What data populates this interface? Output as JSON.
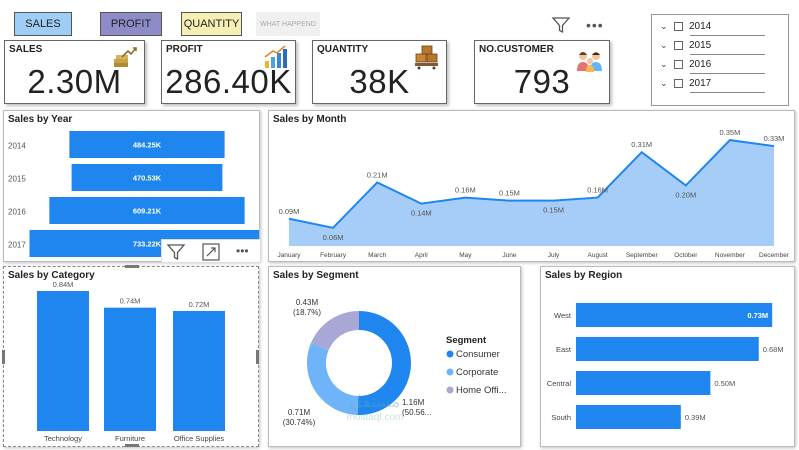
{
  "nav": {
    "sales": "SALES",
    "profit": "PROFIT",
    "quantity": "QUANTITY",
    "what_happend": "WHAT HAPPEND"
  },
  "kpis": [
    {
      "label": "SALES",
      "value": "2.30M",
      "icon": "money-growth-icon"
    },
    {
      "label": "PROFIT",
      "value": "286.40K",
      "icon": "bar-growth-icon"
    },
    {
      "label": "QUANTITY",
      "value": "38K",
      "icon": "boxes-icon"
    },
    {
      "label": "NO.CUSTOMER",
      "value": "793",
      "icon": "customers-icon"
    }
  ],
  "slicer": {
    "years": [
      "2014",
      "2015",
      "2016",
      "2017"
    ]
  },
  "colors": {
    "bar": "#1f86ef",
    "area": "#a6cdf7",
    "line": "#1f86ef",
    "donut_consumer": "#1f86ef",
    "donut_corporate": "#6fb4f8",
    "donut_home": "#a8a8d6",
    "nav_sales": "#9ecdf6",
    "nav_profit": "#8e8cc8",
    "nav_quantity": "#f6efb4"
  },
  "chart_data": [
    {
      "type": "bar",
      "orientation": "horizontal",
      "title": "Sales by Year",
      "categories": [
        "2014",
        "2015",
        "2016",
        "2017"
      ],
      "values": [
        484.25,
        470.53,
        609.21,
        733.22
      ],
      "data_labels": [
        "484.25K",
        "470.53K",
        "609.21K",
        "733.22K"
      ]
    },
    {
      "type": "area",
      "title": "Sales by Month",
      "categories": [
        "January",
        "February",
        "March",
        "April",
        "May",
        "June",
        "July",
        "August",
        "September",
        "October",
        "November",
        "December"
      ],
      "values": [
        0.09,
        0.06,
        0.21,
        0.14,
        0.16,
        0.15,
        0.15,
        0.16,
        0.31,
        0.2,
        0.35,
        0.33
      ],
      "data_labels": [
        "0.09M",
        "0.06M",
        "0.21M",
        "0.14M",
        "0.16M",
        "0.15M",
        "0.15M",
        "0.16M",
        "0.31M",
        "0.20M",
        "0.35M",
        "0.33M"
      ],
      "ylim": [
        0,
        0.38
      ]
    },
    {
      "type": "bar",
      "title": "Sales by Category",
      "categories": [
        "Technology",
        "Furniture",
        "Office Supplies"
      ],
      "values": [
        0.84,
        0.74,
        0.72
      ],
      "data_labels": [
        "0.84M",
        "0.74M",
        "0.72M"
      ],
      "ylim": [
        0,
        0.9
      ]
    },
    {
      "type": "pie",
      "title": "Sales by Segment",
      "legend_title": "Segment",
      "categories": [
        "Consumer",
        "Corporate",
        "Home Offi..."
      ],
      "values": [
        1.16,
        0.71,
        0.43
      ],
      "percents": [
        "(50.56...",
        "(30.74%)",
        "(18.7%)"
      ],
      "data_labels": [
        "1.16M",
        "0.71M",
        "0.43M"
      ]
    },
    {
      "type": "bar",
      "orientation": "horizontal",
      "title": "Sales by Region",
      "categories": [
        "West",
        "East",
        "Central",
        "South"
      ],
      "values": [
        0.73,
        0.68,
        0.5,
        0.39
      ],
      "data_labels": [
        "0.73M",
        "0.68M",
        "0.50M",
        "0.39M"
      ],
      "xlim": [
        0,
        0.8
      ]
    }
  ],
  "watermark": {
    "text_ar": "مستقل",
    "text_en": "mostaql.com"
  }
}
